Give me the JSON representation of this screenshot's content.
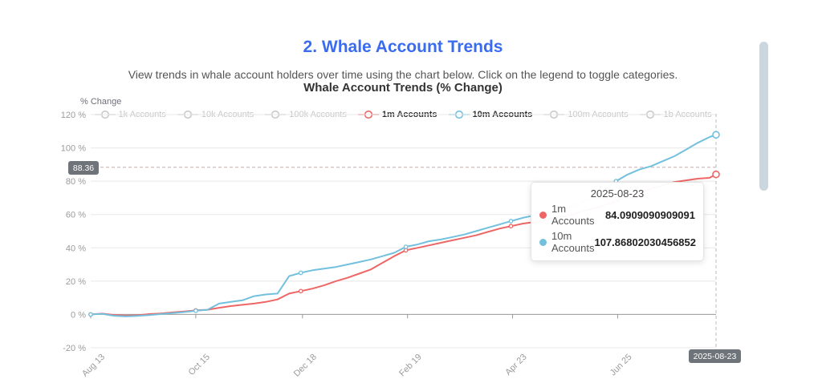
{
  "page": {
    "title": "2. Whale Account Trends",
    "title_color": "#3a6cf0",
    "description": "View trends in whale account holders over time using the chart below. Click on the legend to toggle categories."
  },
  "chart": {
    "title": "Whale Account Trends (% Change)",
    "y_axis_title": "% Change",
    "legend": [
      {
        "label": "1k Accounts",
        "active": false,
        "color": "#c7c7c7"
      },
      {
        "label": "10k Accounts",
        "active": false,
        "color": "#c7c7c7"
      },
      {
        "label": "100k Accounts",
        "active": false,
        "color": "#c7c7c7"
      },
      {
        "label": "1m Accounts",
        "active": true,
        "color": "#ee6666"
      },
      {
        "label": "10m Accounts",
        "active": true,
        "color": "#73c0de"
      },
      {
        "label": "100m Accounts",
        "active": false,
        "color": "#c7c7c7"
      },
      {
        "label": "1b Accounts",
        "active": false,
        "color": "#c7c7c7"
      }
    ],
    "crosshair": {
      "x_label": "2025-08-23",
      "y_label": "88.36",
      "y_value": 88.36,
      "badge_color": "#6f747a"
    },
    "tooltip": {
      "header": "2025-08-23",
      "rows": [
        {
          "label": "1m Accounts",
          "value": "84.0909090909091",
          "color": "#ee6666"
        },
        {
          "label": "10m Accounts",
          "value": "107.86802030456852",
          "color": "#73c0de"
        }
      ]
    }
  },
  "chart_data": {
    "type": "line",
    "title": "Whale Account Trends (% Change)",
    "xlabel": "",
    "ylabel": "% Change",
    "ylim": [
      -20,
      120
    ],
    "grid": true,
    "legend_position": "top",
    "yticks": [
      120,
      100,
      80,
      60,
      40,
      20,
      0,
      -20
    ],
    "ytick_suffix": " %",
    "xticks": [
      {
        "date": "2024-08-13",
        "label": "Aug 13"
      },
      {
        "date": "2024-10-15",
        "label": "Oct 15"
      },
      {
        "date": "2024-12-18",
        "label": "Dec 18"
      },
      {
        "date": "2025-02-19",
        "label": "Feb 19"
      },
      {
        "date": "2025-04-23",
        "label": "Apr 23"
      },
      {
        "date": "2025-06-25",
        "label": "Jun 25"
      }
    ],
    "x_dates": [
      "2024-08-13",
      "2024-08-20",
      "2024-08-27",
      "2024-09-03",
      "2024-09-10",
      "2024-09-17",
      "2024-09-24",
      "2024-10-01",
      "2024-10-08",
      "2024-10-15",
      "2024-10-22",
      "2024-10-29",
      "2024-11-05",
      "2024-11-12",
      "2024-11-19",
      "2024-11-26",
      "2024-12-03",
      "2024-12-10",
      "2024-12-17",
      "2024-12-24",
      "2024-12-31",
      "2025-01-07",
      "2025-01-14",
      "2025-01-21",
      "2025-01-28",
      "2025-02-04",
      "2025-02-11",
      "2025-02-18",
      "2025-02-25",
      "2025-03-04",
      "2025-03-11",
      "2025-03-18",
      "2025-03-25",
      "2025-04-01",
      "2025-04-08",
      "2025-04-15",
      "2025-04-22",
      "2025-04-29",
      "2025-05-06",
      "2025-05-13",
      "2025-05-20",
      "2025-05-27",
      "2025-06-03",
      "2025-06-10",
      "2025-06-17",
      "2025-06-24",
      "2025-07-01",
      "2025-07-08",
      "2025-07-15",
      "2025-07-22",
      "2025-07-29",
      "2025-08-05",
      "2025-08-12",
      "2025-08-19",
      "2025-08-23"
    ],
    "series": [
      {
        "name": "1m Accounts",
        "color": "#ee6666",
        "values": [
          0,
          0.5,
          -0.3,
          -0.7,
          -0.5,
          0.2,
          0.6,
          1.2,
          1.8,
          2.4,
          2.8,
          4.0,
          5.0,
          5.8,
          6.5,
          7.5,
          9.0,
          12.5,
          14.0,
          15.5,
          17.5,
          20.0,
          22.0,
          24.5,
          27.0,
          31.0,
          35.0,
          38.5,
          40.0,
          41.5,
          43.0,
          44.5,
          46.0,
          47.5,
          49.5,
          51.5,
          53.0,
          54.5,
          55.5,
          56.5,
          58.0,
          59.5,
          61.5,
          63.5,
          65.5,
          68.0,
          70.5,
          73.0,
          75.5,
          77.5,
          79.5,
          80.5,
          81.5,
          82.0,
          84.0909090909091
        ]
      },
      {
        "name": "10m Accounts",
        "color": "#73c0de",
        "values": [
          0,
          0.3,
          -0.8,
          -1.2,
          -0.9,
          -0.4,
          0.2,
          0.8,
          1.4,
          2.2,
          2.8,
          6.5,
          7.5,
          8.5,
          11.0,
          12.0,
          12.5,
          23.0,
          25.0,
          26.5,
          27.5,
          28.5,
          30.0,
          31.5,
          33.0,
          35.0,
          37.0,
          40.6,
          42.0,
          44.0,
          45.0,
          46.5,
          48.0,
          50.0,
          52.0,
          54.0,
          56.0,
          58.0,
          59.5,
          61.0,
          62.5,
          64.5,
          67.0,
          70.5,
          75.0,
          80.0,
          84.0,
          87.0,
          89.0,
          92.0,
          95.0,
          99.0,
          103.0,
          106.5,
          107.86802030456852
        ]
      }
    ]
  }
}
